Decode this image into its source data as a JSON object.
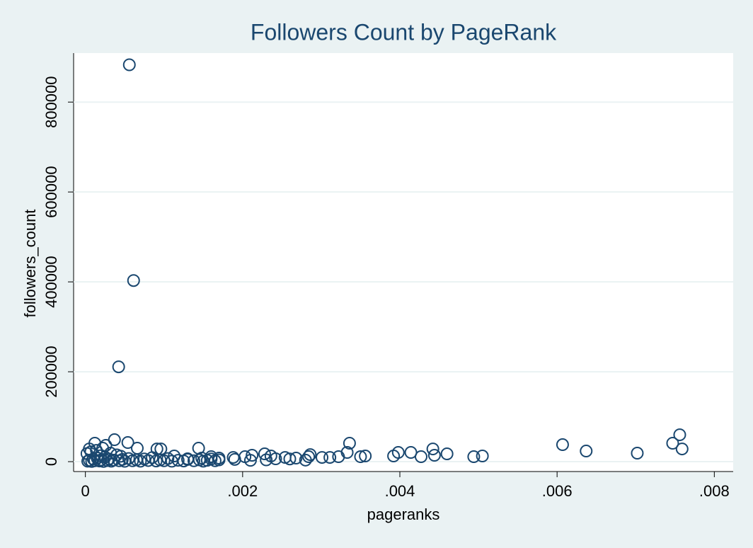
{
  "chart_data": {
    "type": "scatter",
    "title": "Followers Count by PageRank",
    "x_label": "pageranks",
    "y_label": "followers_count",
    "color": "#1a476f",
    "grid": true,
    "xlim": [
      -0.00015,
      0.00824
    ],
    "ylim": [
      -22000,
      909000
    ],
    "xticks": [
      0,
      {
        "value": 0.002,
        "label": ".002"
      },
      {
        "value": 0.004,
        "label": ".004"
      },
      {
        "value": 0.006,
        "label": ".006"
      },
      {
        "value": 0.008,
        "label": ".008"
      }
    ],
    "yticks": [
      0,
      200000,
      400000,
      600000,
      800000
    ],
    "x": [
      0.000559,
      0.000613,
      0.000423,
      0.00607,
      0.00637,
      0.00702,
      0.00747,
      0.00756,
      0.00759,
      0.00494,
      0.00505,
      0.00442,
      0.00444,
      0.0046,
      0.00427,
      0.00414,
      0.00398,
      0.00392,
      0.00336,
      0.00333,
      0.00356,
      0.0035,
      0.00322,
      0.00311,
      0.00301,
      0.00286,
      0.00284,
      0.00268,
      0.00254,
      0.00242,
      0.00228,
      0.00236,
      0.00212,
      0.00203,
      0.00188,
      0.0017,
      0.0016,
      0.00144,
      0.00148,
      0.0013,
      0.00113,
      0.00096,
      0.00091,
      0.00066,
      0.00054,
      0.00037,
      0.00012,
      5e-05,
      0.00026,
      0.00022,
      3e-05,
      5e-05,
      8e-05,
      0.0001,
      0.00012,
      0.00015,
      0.00018,
      0.0002,
      0.00023,
      0.00025,
      0.00028,
      0.0003,
      0.00033,
      0.00036,
      0.0004,
      0.00043,
      0.00047,
      0.0005,
      0.00055,
      0.0006,
      0.00065,
      0.0007,
      0.00075,
      0.0008,
      0.00085,
      0.0009,
      0.00095,
      0.001,
      0.00105,
      0.0011,
      0.00118,
      0.00125,
      0.0013,
      0.00138,
      0.00145,
      0.0015,
      0.00155,
      0.0016,
      0.00165,
      0.0017,
      2e-05,
      7e-05,
      0.00014,
      0.00019,
      0.00032,
      0.00045,
      0.0019,
      0.0021,
      0.0023,
      0.0026,
      0.0028
    ],
    "values": [
      883000,
      403000,
      211000,
      37800,
      23600,
      18900,
      41000,
      59800,
      28300,
      11000,
      12600,
      28300,
      14200,
      17300,
      11000,
      20500,
      20500,
      12600,
      41000,
      20500,
      12600,
      11000,
      11000,
      9400,
      9400,
      15700,
      11000,
      7900,
      9400,
      6300,
      17300,
      12600,
      14200,
      11000,
      9400,
      7900,
      11000,
      29900,
      7900,
      6300,
      12600,
      28300,
      28300,
      29900,
      42500,
      48800,
      41000,
      28300,
      36200,
      29900,
      1000,
      3000,
      500,
      6000,
      2000,
      8000,
      1500,
      4000,
      500,
      10000,
      2500,
      6000,
      1000,
      3500,
      15000,
      2000,
      5000,
      800,
      7000,
      2000,
      4000,
      1000,
      6000,
      2500,
      9000,
      1500,
      4000,
      2000,
      7000,
      1000,
      3000,
      1500,
      5000,
      2000,
      4000,
      1000,
      3000,
      6000,
      2000,
      4000,
      18000,
      22000,
      25000,
      13000,
      19000,
      12000,
      5000,
      3000,
      4000,
      6000,
      3500
    ]
  }
}
